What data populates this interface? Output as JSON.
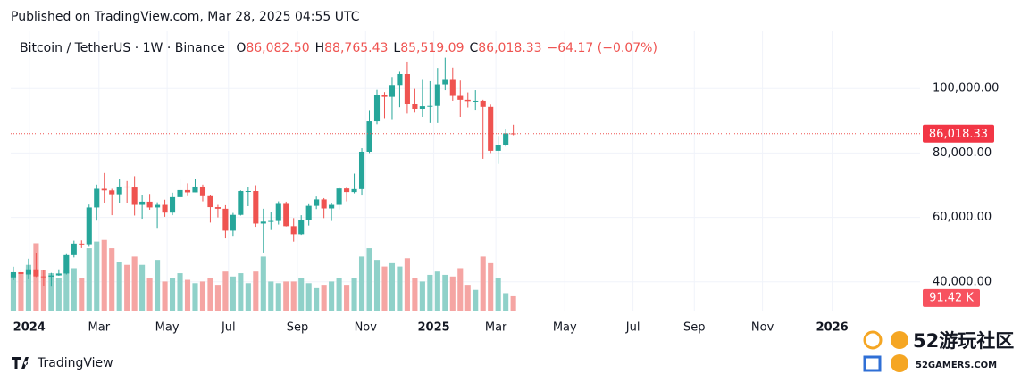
{
  "header": "Published on TradingView.com, Mar 28, 2025 04:55 UTC",
  "footer": "TradingView",
  "watermark": {
    "title": "52游玩社区",
    "subtitle": "52GAMERS.COM"
  },
  "chart_data": {
    "type": "candlestick",
    "symbol": "Bitcoin / TetherUS · 1W · Binance",
    "ohlc_legend": [
      {
        "key": "O",
        "value": "86,082.50"
      },
      {
        "key": "H",
        "value": "88,765.43"
      },
      {
        "key": "L",
        "value": "85,519.09"
      },
      {
        "key": "C",
        "value": "86,018.33"
      }
    ],
    "change": "−64.17 (−0.07%)",
    "up_color": "#26a69a",
    "down_color": "#ef5350",
    "volume_up_color": "#8fd1c9",
    "volume_down_color": "#f5a5a3",
    "grid": true,
    "x": [
      0,
      1,
      2,
      3,
      4,
      5,
      6,
      7,
      8,
      9,
      10,
      11,
      12,
      13,
      14,
      15,
      16,
      17,
      18,
      19,
      20,
      21,
      22,
      23,
      24,
      25,
      26,
      27,
      28,
      29,
      30,
      31,
      32,
      33,
      34,
      35,
      36,
      37,
      38,
      39,
      40,
      41,
      42,
      43,
      44,
      45,
      46,
      47,
      48,
      49,
      50,
      51,
      52,
      53,
      54,
      55,
      56,
      57,
      58,
      59,
      60,
      61,
      62,
      63,
      64,
      65,
      66
    ],
    "open": [
      41400,
      43000,
      42300,
      43900,
      41700,
      41600,
      42000,
      42600,
      48300,
      51900,
      51700,
      63100,
      68900,
      68400,
      67200,
      69600,
      69300,
      63900,
      64900,
      63100,
      63900,
      61500,
      66300,
      68500,
      67800,
      69600,
      66600,
      63200,
      62700,
      55900,
      60800,
      68200,
      68200,
      58100,
      58700,
      58900,
      64200,
      57300,
      54800,
      59100,
      63600,
      65600,
      62800,
      63900,
      69000,
      67900,
      68800,
      80400,
      89800,
      98000,
      97400,
      101100,
      104500,
      95200,
      93700,
      94500,
      94600,
      101300,
      102700,
      97700,
      96500,
      96100,
      96200,
      94300,
      80700,
      82600,
      86082.5
    ],
    "high": [
      44700,
      43800,
      47200,
      49000,
      43600,
      42800,
      43900,
      48600,
      52800,
      52900,
      64000,
      70200,
      73800,
      68900,
      71800,
      71300,
      72800,
      66900,
      67300,
      64700,
      65500,
      67700,
      71900,
      70600,
      71900,
      70200,
      66900,
      63900,
      63800,
      61400,
      68400,
      69400,
      70000,
      62700,
      61800,
      65000,
      64900,
      59800,
      60700,
      64100,
      66500,
      66000,
      64500,
      69400,
      69500,
      73600,
      81500,
      93300,
      99600,
      98900,
      103600,
      105200,
      108400,
      99900,
      102700,
      102300,
      106400,
      109600,
      106500,
      102500,
      98800,
      99500,
      96500,
      95000,
      85300,
      87500,
      88765.43
    ],
    "low": [
      40500,
      41300,
      40800,
      41500,
      38600,
      38500,
      41900,
      42300,
      47600,
      50500,
      50900,
      59000,
      64500,
      60700,
      64500,
      64500,
      60600,
      59600,
      62400,
      56500,
      60200,
      60700,
      66100,
      66600,
      67800,
      65000,
      58400,
      60000,
      53500,
      54300,
      60600,
      63500,
      57100,
      49100,
      56100,
      57800,
      57200,
      52500,
      54600,
      57500,
      62600,
      59800,
      58900,
      62500,
      65000,
      67500,
      66800,
      80000,
      88900,
      90800,
      90500,
      94200,
      92200,
      92500,
      91200,
      89300,
      89300,
      99500,
      96200,
      91200,
      94100,
      93400,
      78200,
      80000,
      76600,
      82000,
      85519.09
    ],
    "close": [
      43000,
      42300,
      43900,
      41700,
      41600,
      42000,
      42600,
      48300,
      51900,
      51700,
      63100,
      68900,
      68400,
      67200,
      69600,
      69300,
      63900,
      64900,
      63100,
      63900,
      61500,
      66300,
      68500,
      67800,
      69600,
      66600,
      63200,
      62700,
      55900,
      60800,
      68200,
      68200,
      58100,
      58700,
      58900,
      64200,
      57300,
      54800,
      59100,
      63600,
      65600,
      62800,
      63900,
      69000,
      67900,
      68800,
      80400,
      89800,
      98000,
      97400,
      101100,
      104500,
      95200,
      93700,
      94500,
      94600,
      101300,
      102700,
      97700,
      96500,
      96100,
      96200,
      94300,
      80700,
      82600,
      86100,
      86018.33
    ],
    "volume": [
      230,
      220,
      280,
      410,
      250,
      230,
      200,
      250,
      260,
      200,
      380,
      420,
      430,
      380,
      300,
      280,
      330,
      280,
      200,
      310,
      180,
      200,
      230,
      190,
      170,
      180,
      200,
      160,
      240,
      210,
      230,
      170,
      240,
      330,
      180,
      170,
      180,
      180,
      200,
      170,
      140,
      160,
      180,
      200,
      160,
      200,
      330,
      380,
      310,
      270,
      290,
      270,
      320,
      200,
      180,
      220,
      240,
      220,
      210,
      260,
      160,
      130,
      330,
      290,
      200,
      110,
      91.42
    ],
    "volume_lim": [
      0,
      600
    ],
    "price_marker": {
      "value": 86018.33,
      "label": "86,018.33"
    },
    "volume_marker": {
      "value": 91.42,
      "label": "91.42 K"
    },
    "xlim": [
      -0.35,
      119.7
    ],
    "ylim": [
      30800,
      117800
    ],
    "yticks": [
      {
        "value": 100000,
        "label": "100,000.00"
      },
      {
        "value": 80000,
        "label": "80,000.00"
      },
      {
        "value": 60000,
        "label": "60,000.00"
      },
      {
        "value": 40000,
        "label": "40,000.00"
      }
    ],
    "xticks": [
      {
        "value": 2.1,
        "label": "2024"
      },
      {
        "value": 11.3,
        "label": "Mar"
      },
      {
        "value": 20.3,
        "label": "May"
      },
      {
        "value": 28.4,
        "label": "Jul"
      },
      {
        "value": 37.5,
        "label": "Sep"
      },
      {
        "value": 46.5,
        "label": "Nov"
      },
      {
        "value": 55.5,
        "label": "2025"
      },
      {
        "value": 63.7,
        "label": "Mar"
      },
      {
        "value": 72.8,
        "label": "May"
      },
      {
        "value": 81.8,
        "label": "Jul"
      },
      {
        "value": 89.9,
        "label": "Sep"
      },
      {
        "value": 98.9,
        "label": "Nov"
      },
      {
        "value": 108.1,
        "label": "2026"
      }
    ]
  }
}
